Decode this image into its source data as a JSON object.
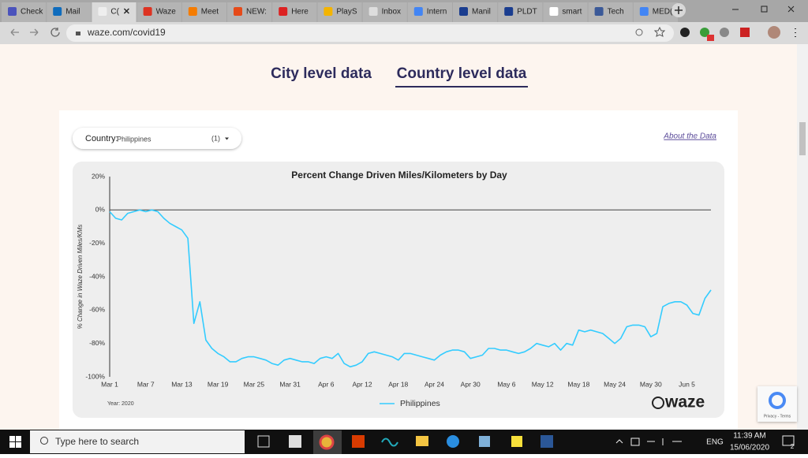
{
  "browser": {
    "tabs": [
      "Check",
      "Mail",
      "C(",
      "Waze",
      "Meet",
      "NEW:",
      "Here",
      "PlayS",
      "Inbox",
      "Intern",
      "Manil",
      "PLDT",
      "smart",
      "Tech",
      "MED("
    ],
    "url": "waze.com/covid19"
  },
  "page": {
    "tabs": [
      "City level data",
      "Country level data"
    ],
    "filter_label": "Country:",
    "filter_value": "Philippines",
    "filter_count": "(1)",
    "about_link": "About the Data",
    "year_note": "Year: 2020",
    "logo": "waze",
    "recaptcha": "Privacy - Terms"
  },
  "chart_data": {
    "type": "line",
    "title": "Percent Change Driven Miles/Kilometers by Day",
    "y_label": "% Change in Waze Driven Miles/KMs",
    "categories": [
      "Mar 1",
      null,
      null,
      null,
      null,
      null,
      "Mar 7",
      null,
      null,
      null,
      null,
      null,
      "Mar 13",
      null,
      null,
      null,
      null,
      null,
      "Mar 19",
      null,
      null,
      null,
      null,
      null,
      "Mar 25",
      null,
      null,
      null,
      null,
      null,
      "Mar 31",
      null,
      null,
      null,
      null,
      null,
      "Apr 6",
      null,
      null,
      null,
      null,
      null,
      "Apr 12",
      null,
      null,
      null,
      null,
      null,
      "Apr 18",
      null,
      null,
      null,
      null,
      null,
      "Apr 24",
      null,
      null,
      null,
      null,
      null,
      "Apr 30",
      null,
      null,
      null,
      null,
      null,
      "May 6",
      null,
      null,
      null,
      null,
      null,
      "May 12",
      null,
      null,
      null,
      null,
      null,
      "May 18",
      null,
      null,
      null,
      null,
      null,
      "May 24",
      null,
      null,
      null,
      null,
      null,
      "May 30",
      null,
      null,
      null,
      null,
      null,
      "Jun 5",
      null,
      null,
      null,
      null
    ],
    "series": [
      {
        "name": "Philippines",
        "color": "#33ccff",
        "values": [
          -1,
          -5,
          -6,
          -2,
          -1,
          0,
          -1,
          0,
          -1,
          -5,
          -8,
          -10,
          -12,
          -17,
          -68,
          -55,
          -78,
          -83,
          -86,
          -88,
          -91,
          -91,
          -89,
          -88,
          -88,
          -89,
          -90,
          -92,
          -93,
          -90,
          -89,
          -90,
          -91,
          -91,
          -92,
          -89,
          -88,
          -89,
          -86,
          -92,
          -94,
          -93,
          -91,
          -86,
          -85,
          -86,
          -87,
          -88,
          -90,
          -86,
          -86,
          -87,
          -88,
          -89,
          -90,
          -87,
          -85,
          -84,
          -84,
          -85,
          -89,
          -88,
          -87,
          -83,
          -83,
          -84,
          -84,
          -85,
          -86,
          -85,
          -83,
          -80,
          -81,
          -82,
          -80,
          -84,
          -80,
          -81,
          -72,
          -73,
          -72,
          -73,
          -74,
          -77,
          -80,
          -77,
          -70,
          -69,
          -69,
          -70,
          -76,
          -74,
          -58,
          -56,
          -55,
          -55,
          -57,
          -62,
          -63,
          -53,
          -48
        ]
      }
    ],
    "ylim": [
      -100,
      20
    ],
    "yticks": [
      {
        "value": 20,
        "label": "20%"
      },
      {
        "value": 0,
        "label": "0%"
      },
      {
        "value": -20,
        "label": "-20%"
      },
      {
        "value": -40,
        "label": "-40%"
      },
      {
        "value": -60,
        "label": "-60%"
      },
      {
        "value": -80,
        "label": "-80%"
      },
      {
        "value": -100,
        "label": "-100%"
      }
    ],
    "grid": false
  },
  "taskbar": {
    "search": "Type here to search",
    "language": "ENG",
    "time": "11:39 AM",
    "date": "15/06/2020",
    "notifications": "2"
  }
}
